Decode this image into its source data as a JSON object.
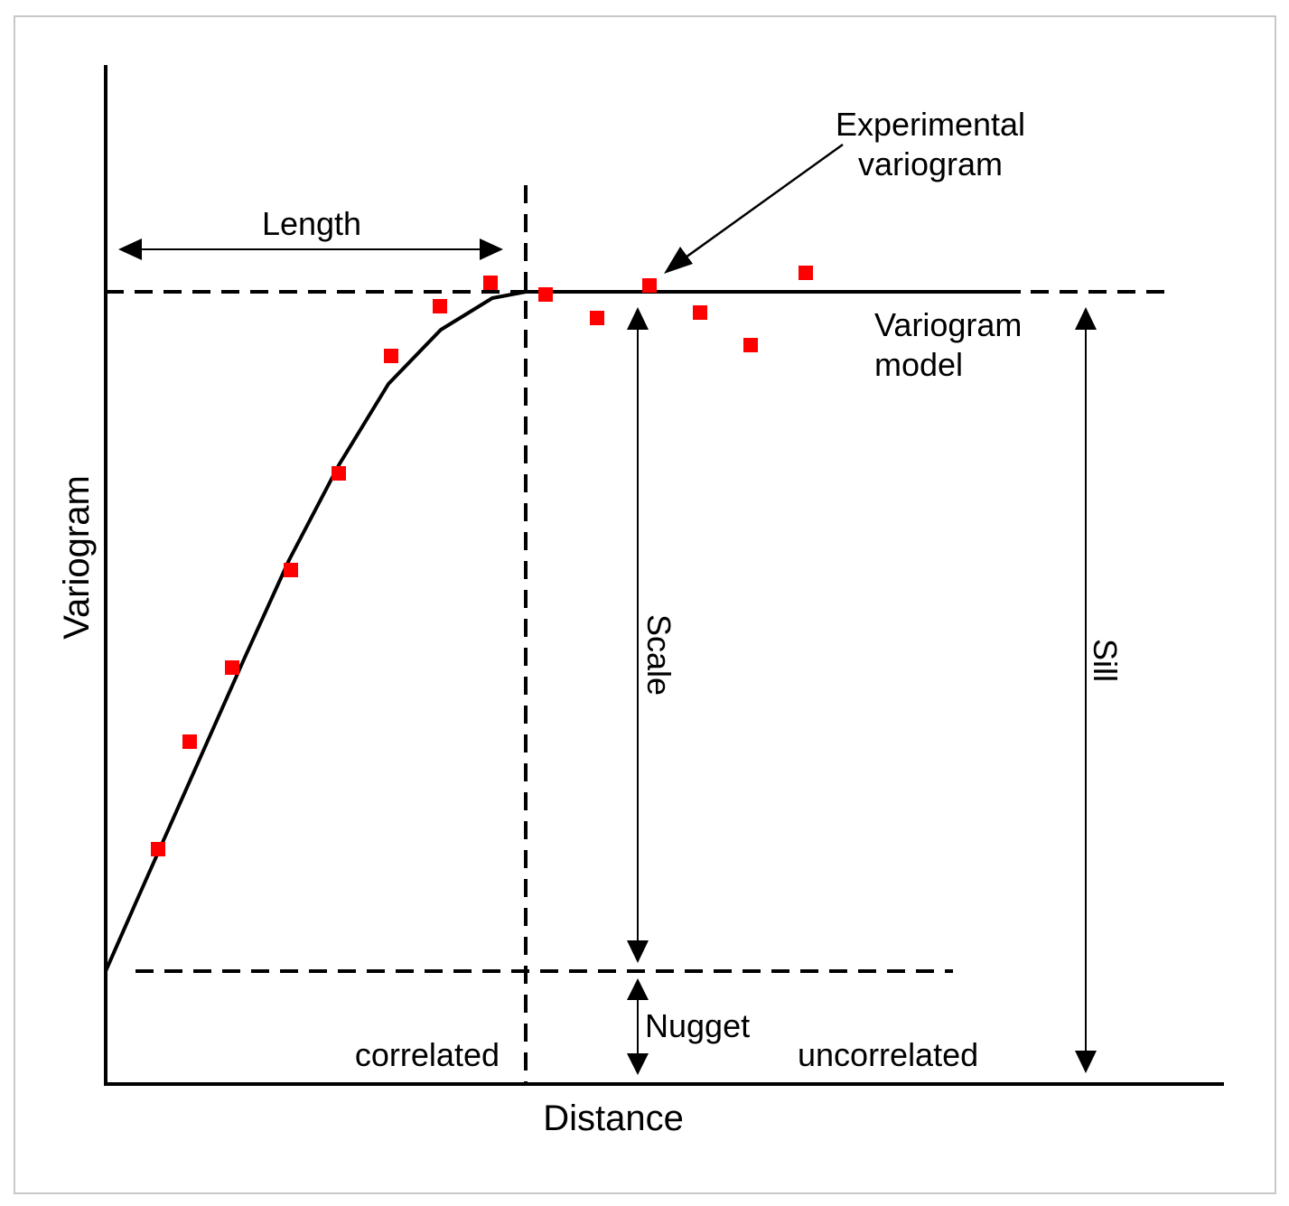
{
  "labels": {
    "y_axis": "Variogram",
    "x_axis": "Distance",
    "length": "Length",
    "experimental_line1": "Experimental",
    "experimental_line2": "variogram",
    "model_line1": "Variogram",
    "model_line2": "model",
    "scale": "Scale",
    "sill": "Sill",
    "nugget": "Nugget",
    "correlated": "correlated",
    "uncorrelated": "uncorrelated"
  },
  "colors": {
    "points": "#ff0000",
    "lines": "#000000",
    "frame": "#c8c8c8"
  }
}
